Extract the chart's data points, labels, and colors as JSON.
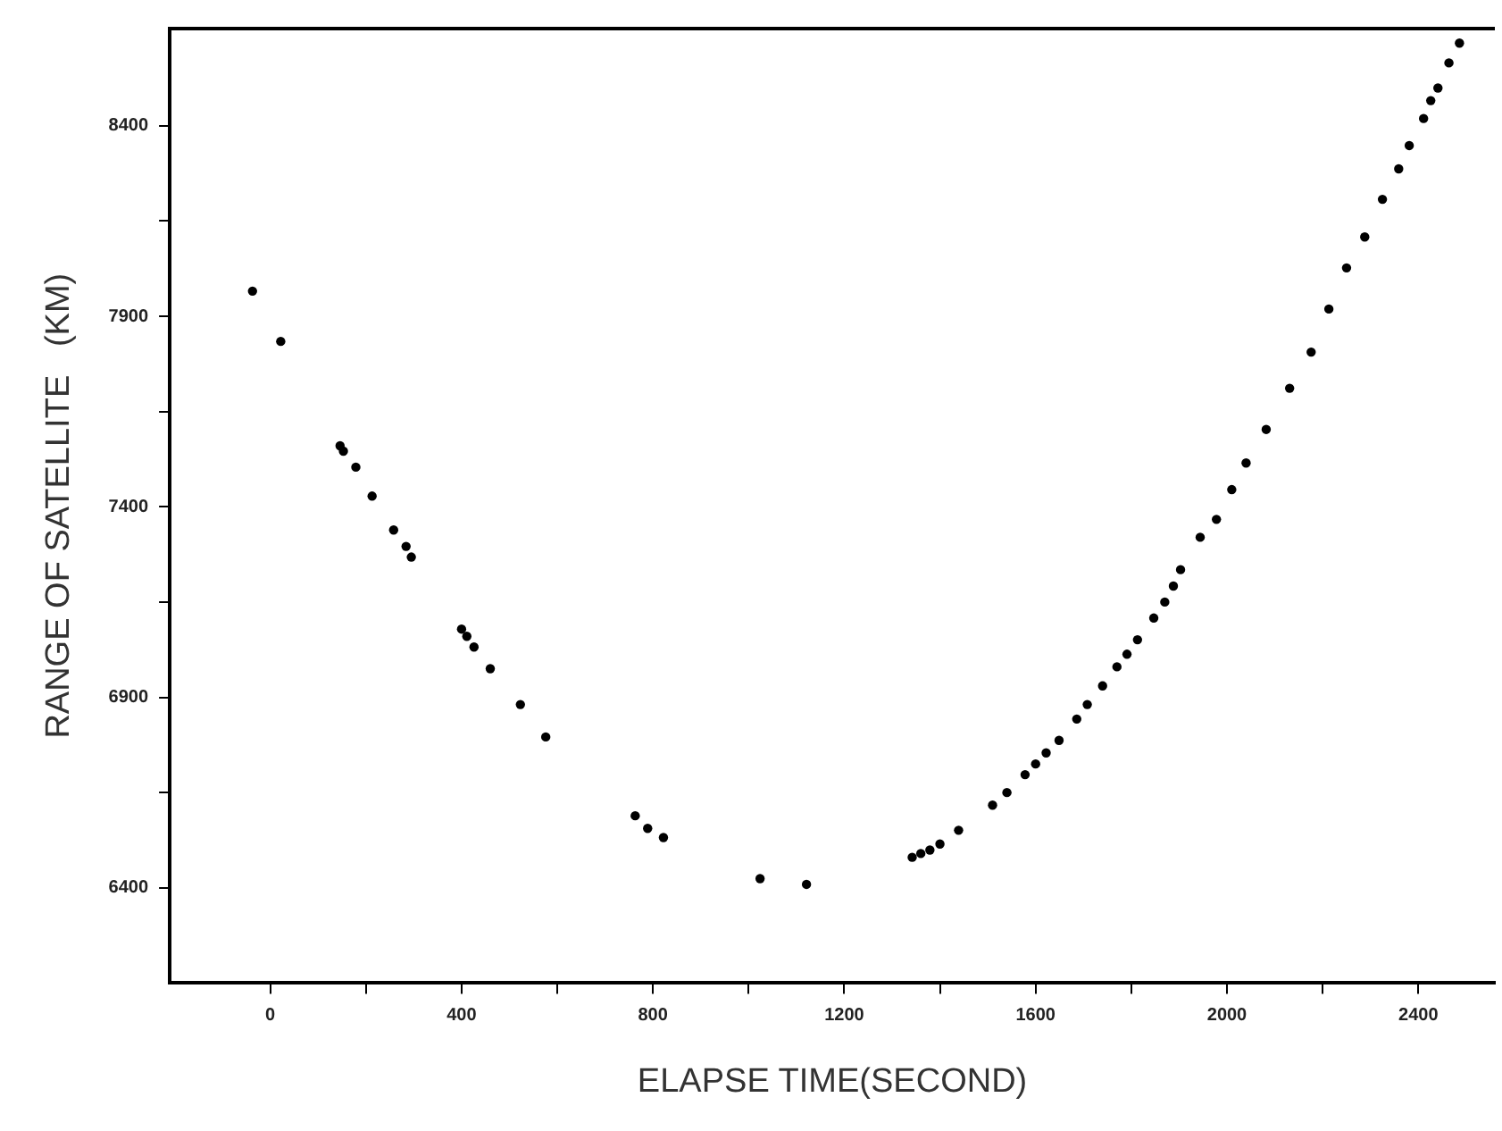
{
  "chart_data": {
    "type": "scatter",
    "xlabel": "ELAPSE TIME(SECOND)",
    "ylabel": "RANGE OF SATELLITE   (KM)",
    "xlim": [
      -210,
      2560
    ],
    "ylim": [
      6150,
      8655
    ],
    "xticks": [
      0,
      {
        "value": 200,
        "label": null
      },
      400,
      {
        "value": 600,
        "label": null
      },
      800,
      {
        "value": 1000,
        "label": null
      },
      1200,
      {
        "value": 1400,
        "label": null
      },
      1600,
      {
        "value": 1800,
        "label": null
      },
      2000,
      {
        "value": 2200,
        "label": null
      },
      2400
    ],
    "yticks": [
      6400,
      {
        "value": 6650,
        "label": null
      },
      6900,
      {
        "value": 7150,
        "label": null
      },
      7400,
      {
        "value": 7650,
        "label": null
      },
      7900,
      {
        "value": 8150,
        "label": null
      },
      8400
    ],
    "grid": false,
    "legend": false,
    "marker": "circle",
    "series": [
      {
        "color": "#000000",
        "x": [
          -37,
          22,
          146,
          153,
          179,
          213,
          258,
          284,
          295,
          400,
          411,
          426,
          460,
          523,
          576,
          763,
          789,
          822,
          1024,
          1121,
          1342,
          1360,
          1379,
          1400,
          1439,
          1510,
          1540,
          1578,
          1600,
          1622,
          1649,
          1686,
          1708,
          1740,
          1770,
          1791,
          1813,
          1847,
          1870,
          1888,
          1903,
          1944,
          1978,
          2010,
          2040,
          2082,
          2131,
          2176,
          2213,
          2250,
          2288,
          2325,
          2359,
          2381,
          2411,
          2426,
          2441,
          2464,
          2486
        ],
        "values": [
          7966,
          7834,
          7560,
          7546,
          7504,
          7428,
          7339,
          7296,
          7268,
          7079,
          7060,
          7032,
          6975,
          6881,
          6796,
          6589,
          6556,
          6532,
          6424,
          6409,
          6480,
          6490,
          6499,
          6515,
          6551,
          6617,
          6650,
          6697,
          6725,
          6754,
          6787,
          6843,
          6881,
          6930,
          6980,
          7013,
          7051,
          7108,
          7150,
          7192,
          7235,
          7320,
          7367,
          7445,
          7515,
          7603,
          7711,
          7806,
          7919,
          8027,
          8108,
          8207,
          8287,
          8348,
          8419,
          8466,
          8499,
          8565,
          8617
        ]
      }
    ]
  }
}
